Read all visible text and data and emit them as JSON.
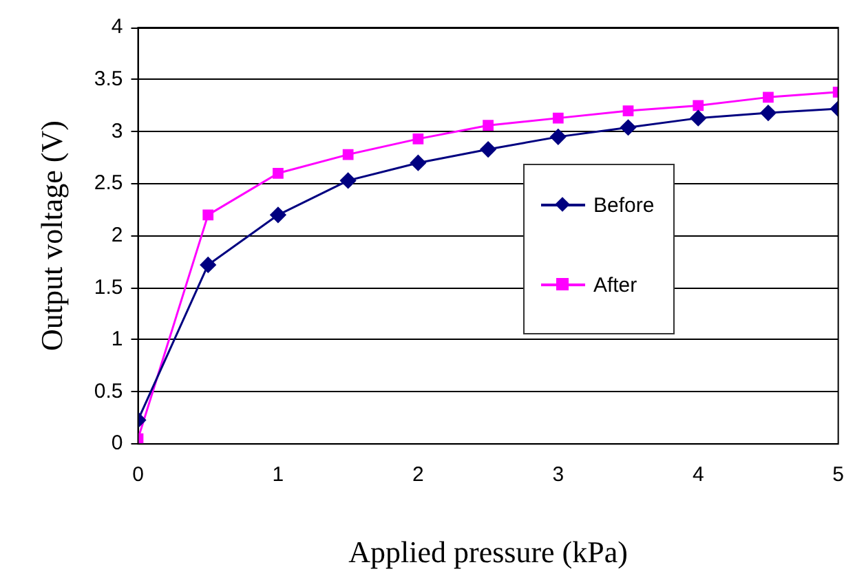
{
  "chart_data": {
    "type": "line",
    "xlabel": "Applied pressure (kPa)",
    "ylabel": "Output voltage (V)",
    "x": [
      0,
      0.5,
      1,
      1.5,
      2,
      2.5,
      3,
      3.5,
      4,
      4.5,
      5
    ],
    "series": [
      {
        "name": "Before",
        "color": "#000080",
        "marker": "diamond",
        "values": [
          0.23,
          1.72,
          2.2,
          2.53,
          2.7,
          2.83,
          2.95,
          3.04,
          3.13,
          3.18,
          3.22
        ]
      },
      {
        "name": "After",
        "color": "#ff00ff",
        "marker": "square",
        "values": [
          0.05,
          2.2,
          2.6,
          2.78,
          2.93,
          3.06,
          3.13,
          3.2,
          3.25,
          3.33,
          3.38
        ]
      }
    ],
    "xlim": [
      0,
      5
    ],
    "xticks": [
      0,
      1,
      2,
      3,
      4,
      5
    ],
    "ylim": [
      0,
      4
    ],
    "yticks": [
      0,
      0.5,
      1,
      1.5,
      2,
      2.5,
      3,
      3.5,
      4
    ],
    "grid": "y",
    "legend": "right",
    "line_style": "solid"
  }
}
